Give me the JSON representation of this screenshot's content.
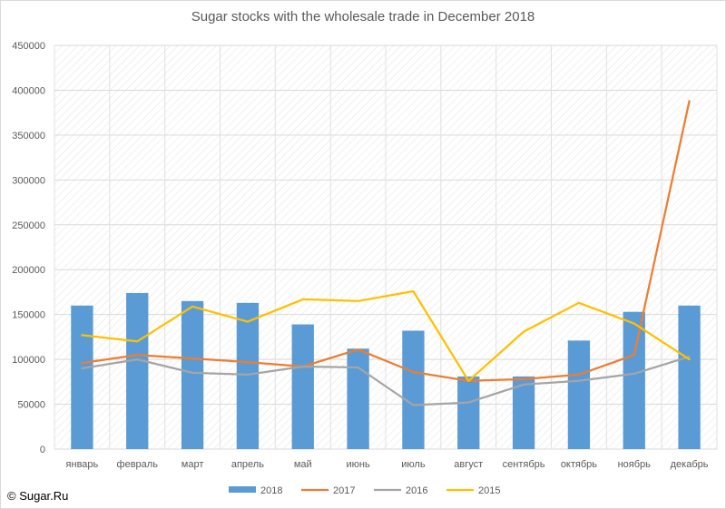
{
  "chart_data": {
    "type": "bar",
    "title": "Sugar stocks with the wholesale trade in December 2018",
    "categories": [
      "январь",
      "февраль",
      "март",
      "апрель",
      "май",
      "июнь",
      "июль",
      "август",
      "сентябрь",
      "октябрь",
      "ноябрь",
      "декабрь"
    ],
    "ylim": [
      0,
      450000
    ],
    "yticks": [
      0,
      50000,
      100000,
      150000,
      200000,
      250000,
      300000,
      350000,
      400000,
      450000
    ],
    "grid": true,
    "legend_position": "bottom",
    "series": [
      {
        "name": "2018",
        "type": "bar",
        "color": "#5b9bd5",
        "values": [
          160000,
          174000,
          165000,
          163000,
          139000,
          112000,
          132000,
          81000,
          81000,
          121000,
          153000,
          160000
        ]
      },
      {
        "name": "2017",
        "type": "line",
        "color": "#ed7d31",
        "values": [
          96000,
          105000,
          101000,
          97000,
          92000,
          111000,
          86000,
          76000,
          78000,
          83000,
          105000,
          388000
        ]
      },
      {
        "name": "2016",
        "type": "line",
        "color": "#a5a5a5",
        "values": [
          90000,
          100000,
          85000,
          83000,
          92000,
          91000,
          49000,
          52000,
          72000,
          76000,
          84000,
          103000
        ]
      },
      {
        "name": "2015",
        "type": "line",
        "color": "#ffc000",
        "values": [
          127000,
          120000,
          159000,
          142000,
          167000,
          165000,
          176000,
          76000,
          131000,
          163000,
          140000,
          100000
        ]
      }
    ]
  },
  "copyright": "© Sugar.Ru"
}
